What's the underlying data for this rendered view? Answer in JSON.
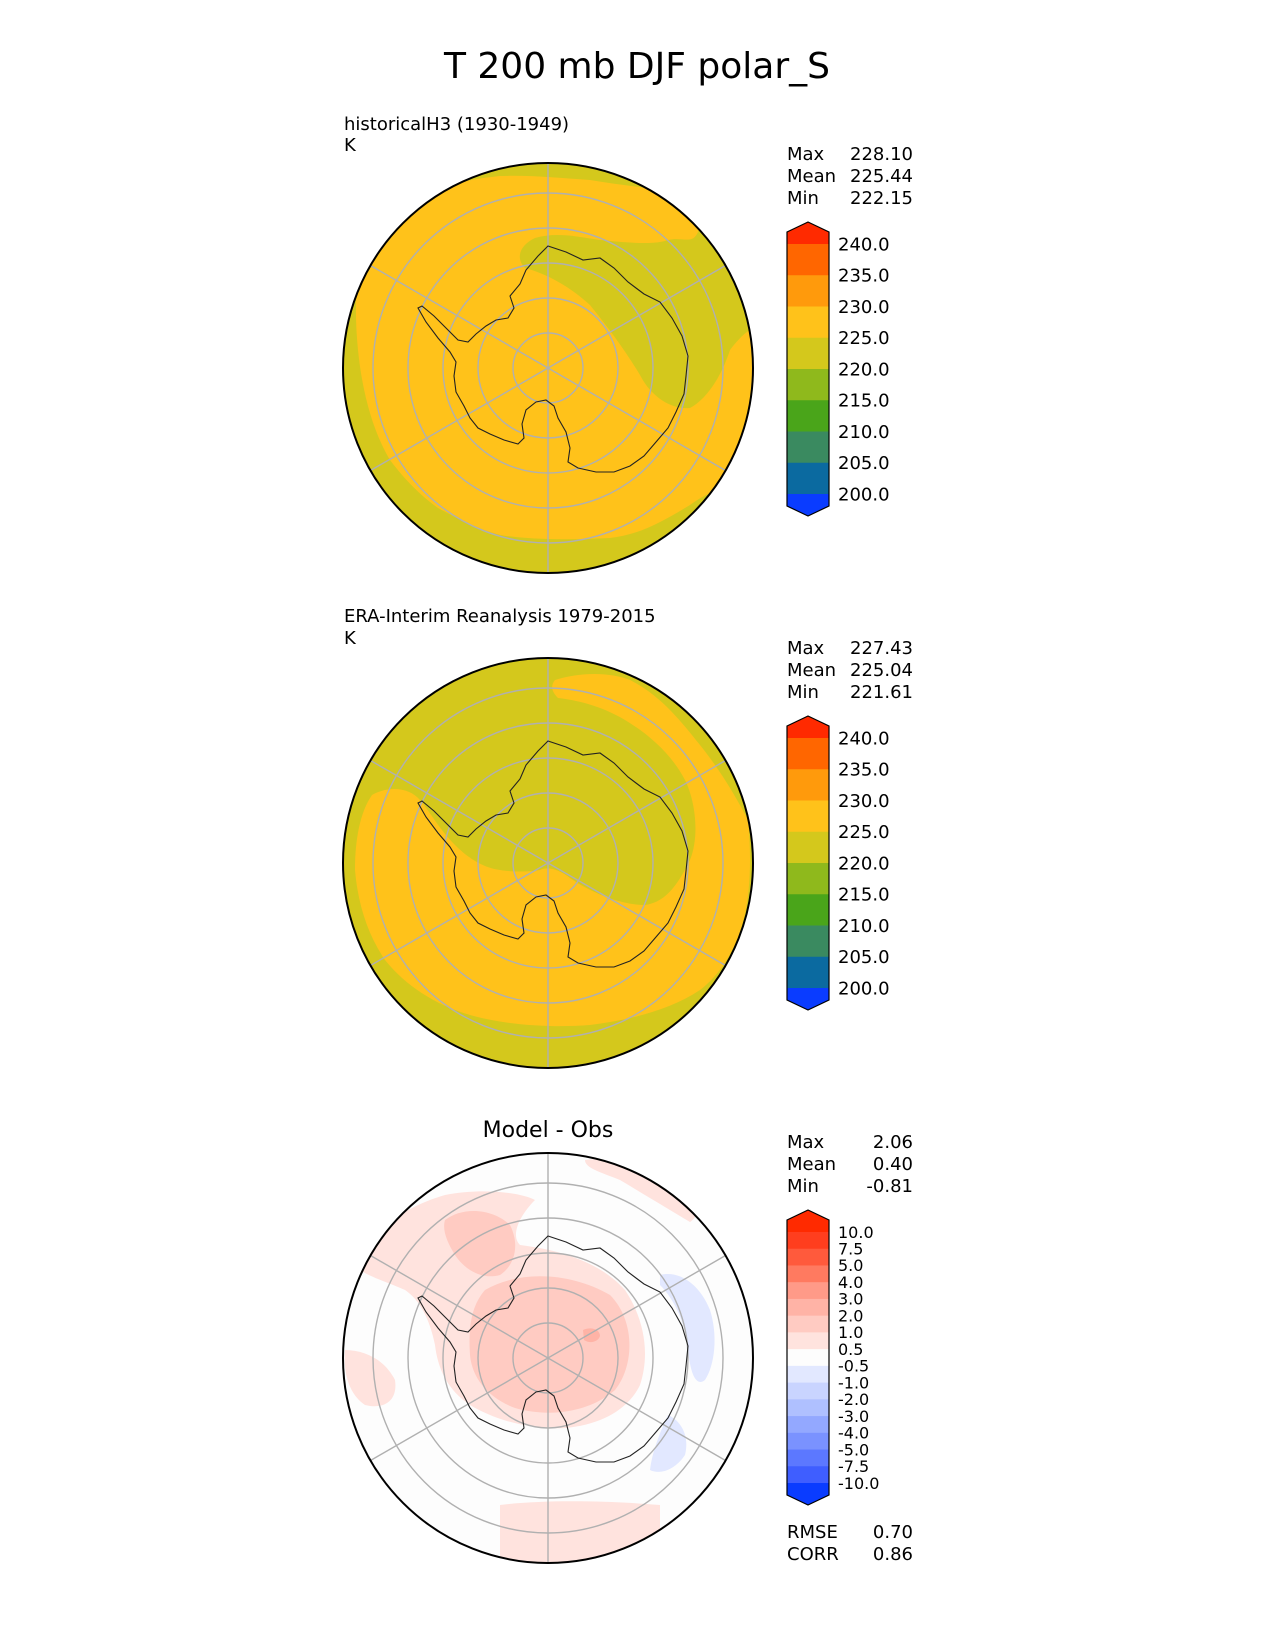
{
  "title": "T 200 mb DJF polar_S",
  "panels": [
    {
      "id": "test",
      "subtitle": "historicalH3 (1930-1949)",
      "units": "K",
      "stats": [
        [
          "Max",
          "228.10"
        ],
        [
          "Mean",
          "225.44"
        ],
        [
          "Min",
          "222.15"
        ]
      ],
      "colorbar": {
        "labels": [
          "240.0",
          "235.0",
          "230.0",
          "225.0",
          "220.0",
          "215.0",
          "210.0",
          "205.0",
          "200.0"
        ],
        "colors": [
          "#ff2a00",
          "#ff6600",
          "#ff9a0c",
          "#ffc21a",
          "#d4c81c",
          "#8fb91c",
          "#4aa51a",
          "#3a8a60",
          "#0b6aa0",
          "#0a3cff"
        ]
      },
      "map_colors": {
        "base": "#ffc21a",
        "cool": "#d4c81c"
      }
    },
    {
      "id": "reference",
      "subtitle": "ERA-Interim Reanalysis 1979-2015",
      "units": "K",
      "stats": [
        [
          "Max",
          "227.43"
        ],
        [
          "Mean",
          "225.04"
        ],
        [
          "Min",
          "221.61"
        ]
      ],
      "colorbar": {
        "labels": [
          "240.0",
          "235.0",
          "230.0",
          "225.0",
          "220.0",
          "215.0",
          "210.0",
          "205.0",
          "200.0"
        ],
        "colors": [
          "#ff2a00",
          "#ff6600",
          "#ff9a0c",
          "#ffc21a",
          "#d4c81c",
          "#8fb91c",
          "#4aa51a",
          "#3a8a60",
          "#0b6aa0",
          "#0a3cff"
        ]
      },
      "map_colors": {
        "base": "#d4c81c",
        "warm": "#ffc21a"
      }
    },
    {
      "id": "difference",
      "subtitle": "Model - Obs",
      "stats": [
        [
          "Max",
          "2.06"
        ],
        [
          "Mean",
          "0.40"
        ],
        [
          "Min",
          "-0.81"
        ]
      ],
      "colorbar": {
        "labels": [
          "10.0",
          "7.5",
          "5.0",
          "4.0",
          "3.0",
          "2.0",
          "1.0",
          "0.5",
          "-0.5",
          "-1.0",
          "-2.0",
          "-3.0",
          "-4.0",
          "-5.0",
          "-7.5",
          "-10.0"
        ],
        "colors": [
          "#ff2a00",
          "#ff3e1e",
          "#ff5a3c",
          "#ff7a60",
          "#ff9a88",
          "#ffb3a6",
          "#ffcbc2",
          "#ffe3de",
          "#fdfdfd",
          "#e2e8ff",
          "#c9d4ff",
          "#afc0ff",
          "#93a8ff",
          "#7a92ff",
          "#5c78ff",
          "#3f5eff",
          "#0a3cff"
        ]
      },
      "metrics": [
        [
          "RMSE",
          "0.70"
        ],
        [
          "CORR",
          "0.86"
        ]
      ],
      "map_colors": {
        "base": "#fdfdfd",
        "pos1": "#ffe3de",
        "pos2": "#ffcbc2",
        "pos3": "#ffb3a6",
        "neg1": "#e2e8ff"
      }
    }
  ],
  "chart_data": [
    {
      "type": "heatmap",
      "projection": "south polar stereographic",
      "title": "historicalH3 (1930-1949)",
      "units": "K",
      "summary": {
        "max": 228.1,
        "mean": 225.44,
        "min": 222.15
      },
      "levels": [
        200,
        205,
        210,
        215,
        220,
        225,
        230,
        235,
        240
      ],
      "extend": "both"
    },
    {
      "type": "heatmap",
      "projection": "south polar stereographic",
      "title": "ERA-Interim Reanalysis 1979-2015",
      "units": "K",
      "summary": {
        "max": 227.43,
        "mean": 225.04,
        "min": 221.61
      },
      "levels": [
        200,
        205,
        210,
        215,
        220,
        225,
        230,
        235,
        240
      ],
      "extend": "both"
    },
    {
      "type": "heatmap",
      "projection": "south polar stereographic",
      "title": "Model - Obs",
      "summary": {
        "max": 2.06,
        "mean": 0.4,
        "min": -0.81
      },
      "levels": [
        -10,
        -7.5,
        -5,
        -4,
        -3,
        -2,
        -1,
        -0.5,
        0.5,
        1,
        2,
        3,
        4,
        5,
        7.5,
        10
      ],
      "extend": "both",
      "metrics": {
        "rmse": 0.7,
        "corr": 0.86
      }
    }
  ]
}
